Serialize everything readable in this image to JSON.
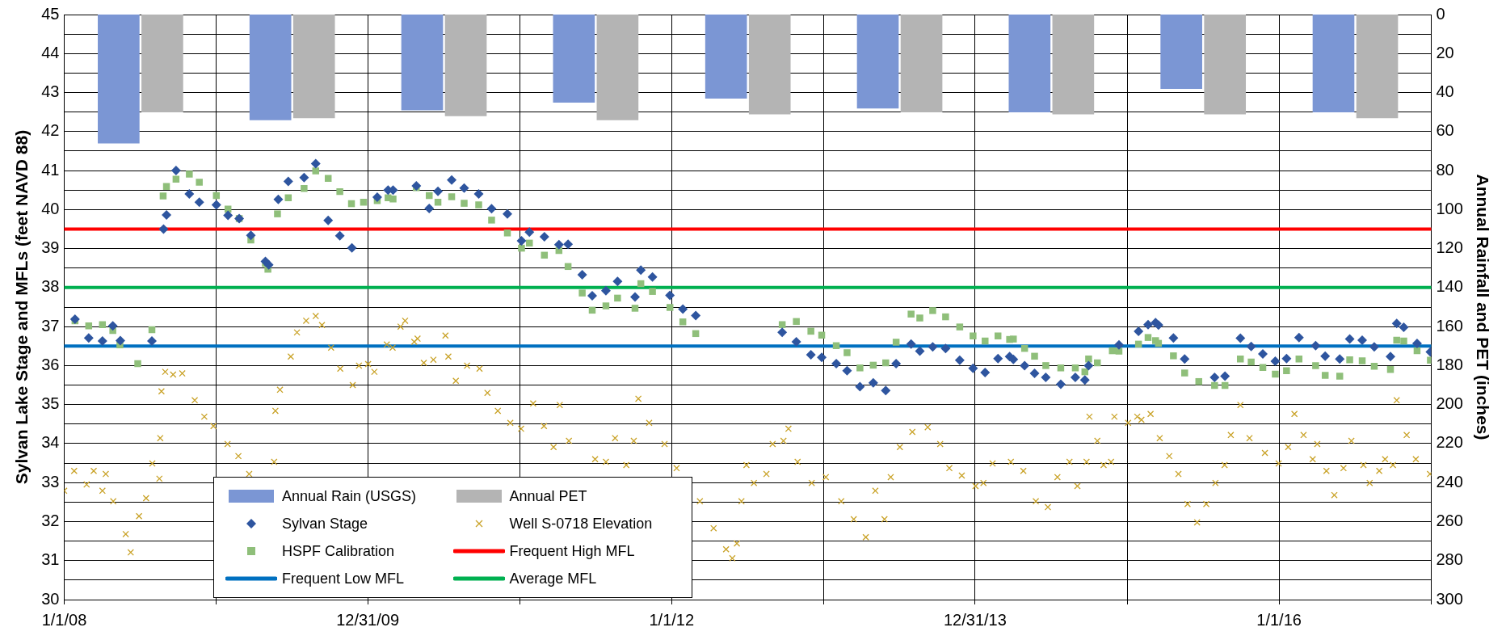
{
  "chart_data": {
    "type": "scatter",
    "ylabel": "Sylvan Lake Stage and MFLs (feet NAVD 88)",
    "y2label": "Annual Rainfall and PET (inches)",
    "xlim": [
      "2008-01-01",
      "2017-01-01"
    ],
    "xticks": [
      {
        "value": "2008-01-01",
        "label": "1/1/08"
      },
      {
        "value": "2009-01-01",
        "label": null
      },
      {
        "value": "2009-12-31",
        "label": "12/31/09"
      },
      {
        "value": "2011-01-01",
        "label": null
      },
      {
        "value": "2012-01-01",
        "label": "1/1/12"
      },
      {
        "value": "2013-01-01",
        "label": null
      },
      {
        "value": "2013-12-31",
        "label": "12/31/13"
      },
      {
        "value": "2015-01-01",
        "label": null
      },
      {
        "value": "2016-01-01",
        "label": "1/1/16"
      },
      {
        "value": "2017-01-01",
        "label": null
      }
    ],
    "ylim": [
      30,
      45
    ],
    "yticks": [
      30,
      {
        "value": 30.5,
        "label": null
      },
      31,
      {
        "value": 31.5,
        "label": null
      },
      32,
      {
        "value": 32.5,
        "label": null
      },
      33,
      {
        "value": 33.5,
        "label": null
      },
      34,
      {
        "value": 34.5,
        "label": null
      },
      35,
      {
        "value": 35.5,
        "label": null
      },
      36,
      {
        "value": 36.5,
        "label": null
      },
      37,
      {
        "value": 37.5,
        "label": null
      },
      38,
      {
        "value": 38.5,
        "label": null
      },
      39,
      {
        "value": 39.5,
        "label": null
      },
      40,
      {
        "value": 40.5,
        "label": null
      },
      41,
      {
        "value": 41.5,
        "label": null
      },
      42,
      {
        "value": 42.5,
        "label": null
      },
      43,
      {
        "value": 43.5,
        "label": null
      },
      44,
      {
        "value": 44.5,
        "label": null
      },
      45
    ],
    "y2lim": [
      300,
      0
    ],
    "y2ticks": [
      0,
      20,
      40,
      60,
      80,
      100,
      120,
      140,
      160,
      180,
      200,
      220,
      240,
      260,
      280,
      300
    ],
    "grid": true,
    "legend": "bottom",
    "series": [
      {
        "name": "Annual Rain (USGS)",
        "type": "bar",
        "axis": "y2",
        "color": "#7b96d4",
        "x": [
          "2008-05-11",
          "2009-05-11",
          "2010-05-11",
          "2011-05-11",
          "2012-05-11",
          "2013-05-11",
          "2014-05-11",
          "2015-05-11",
          "2016-05-11"
        ],
        "values": [
          66,
          54,
          49,
          45,
          43,
          48,
          50,
          38,
          50
        ]
      },
      {
        "name": "Annual PET",
        "type": "bar",
        "axis": "y2",
        "color": "#b4b4b4",
        "x": [
          "2008-08-24",
          "2009-08-24",
          "2010-08-24",
          "2011-08-24",
          "2012-08-24",
          "2013-08-24",
          "2014-08-24",
          "2015-08-24",
          "2016-08-24"
        ],
        "values": [
          50,
          53,
          52,
          54,
          51,
          50,
          51,
          51,
          53
        ]
      },
      {
        "name": "Sylvan Stage",
        "marker": "diamond",
        "color": "#2e559f",
        "x": [
          "2008-01-27",
          "2008-02-29",
          "2008-04-02",
          "2008-04-27",
          "2008-05-15",
          "2008-07-30",
          "2008-08-27",
          "2008-09-03",
          "2008-09-26",
          "2008-10-28",
          "2008-11-21",
          "2009-01-01",
          "2009-01-29",
          "2009-02-25",
          "2009-03-25",
          "2009-04-29",
          "2009-05-07",
          "2009-05-30",
          "2009-06-23",
          "2009-07-31",
          "2009-08-28",
          "2009-09-27",
          "2009-10-25",
          "2009-11-23",
          "2010-01-23",
          "2010-02-18",
          "2010-03-02",
          "2010-04-27",
          "2010-05-28",
          "2010-06-18",
          "2010-07-21",
          "2010-08-20",
          "2010-09-24",
          "2010-10-25",
          "2010-12-02",
          "2011-01-05",
          "2011-01-24",
          "2011-03-01",
          "2011-04-05",
          "2011-04-27",
          "2011-05-31",
          "2011-06-24",
          "2011-07-27",
          "2011-08-24",
          "2011-10-05",
          "2011-10-19",
          "2011-11-16",
          "2011-12-28",
          "2012-01-28",
          "2012-02-28",
          "2012-09-23",
          "2012-10-27",
          "2012-12-01",
          "2012-12-27",
          "2013-01-31",
          "2013-02-26",
          "2013-03-29",
          "2013-04-30",
          "2013-05-30",
          "2013-06-24",
          "2013-07-30",
          "2013-08-20",
          "2013-09-20",
          "2013-10-21",
          "2013-11-24",
          "2013-12-26",
          "2014-01-24",
          "2014-02-24",
          "2014-03-24",
          "2014-04-02",
          "2014-04-29",
          "2014-05-23",
          "2014-06-19",
          "2014-07-25",
          "2014-08-29",
          "2014-09-21",
          "2014-09-30",
          "2014-12-12",
          "2015-01-28",
          "2015-02-20",
          "2015-03-10",
          "2015-03-17",
          "2015-04-22",
          "2015-05-19",
          "2015-07-30",
          "2015-08-24",
          "2015-09-30",
          "2015-10-26",
          "2015-11-23",
          "2015-12-23",
          "2016-01-19",
          "2016-02-18",
          "2016-03-29",
          "2016-04-21",
          "2016-05-26",
          "2016-06-19",
          "2016-07-19",
          "2016-08-17",
          "2016-09-25",
          "2016-10-10",
          "2016-10-27",
          "2016-11-28",
          "2016-12-30"
        ],
        "values": [
          37.19,
          36.71,
          36.63,
          37.02,
          36.64,
          36.63,
          39.5,
          39.86,
          41.0,
          40.4,
          40.19,
          40.12,
          39.85,
          39.77,
          39.34,
          38.67,
          38.58,
          40.26,
          40.72,
          40.82,
          41.18,
          39.72,
          39.33,
          39.02,
          40.32,
          40.5,
          40.5,
          40.61,
          40.03,
          40.47,
          40.76,
          40.55,
          40.4,
          40.02,
          39.89,
          39.2,
          39.42,
          39.3,
          39.1,
          39.11,
          38.33,
          37.79,
          37.92,
          38.16,
          37.76,
          38.45,
          38.27,
          37.8,
          37.45,
          37.28,
          36.85,
          36.61,
          36.28,
          36.21,
          36.05,
          35.87,
          35.46,
          35.56,
          35.36,
          36.05,
          36.55,
          36.37,
          36.48,
          36.44,
          36.14,
          35.93,
          35.82,
          36.18,
          36.23,
          36.16,
          36.0,
          35.8,
          35.7,
          35.52,
          35.7,
          35.63,
          36.0,
          36.53,
          36.88,
          37.05,
          37.1,
          37.04,
          36.71,
          36.17,
          35.7,
          35.73,
          36.7,
          36.49,
          36.3,
          36.11,
          36.18,
          36.72,
          36.51,
          36.24,
          36.17,
          36.68,
          36.65,
          36.48,
          36.23,
          37.08,
          36.98,
          36.57,
          36.35
        ]
      },
      {
        "name": "Well S-0718 Elevation",
        "marker": "cross",
        "color": "#c9a227",
        "x": [
          "2008-01-01",
          "2008-01-25",
          "2008-02-24",
          "2008-03-12",
          "2008-04-02",
          "2008-04-10",
          "2008-04-28",
          "2008-05-28",
          "2008-06-09",
          "2008-06-29",
          "2008-07-16",
          "2008-07-31",
          "2008-08-17",
          "2008-08-19",
          "2008-08-22",
          "2008-08-31",
          "2008-09-19",
          "2008-10-11",
          "2008-11-10",
          "2008-12-03",
          "2008-12-25",
          "2009-01-28",
          "2009-02-23",
          "2009-03-21",
          "2009-05-20",
          "2009-05-23",
          "2009-06-03",
          "2009-06-29",
          "2009-07-14",
          "2009-08-05",
          "2009-08-28",
          "2009-09-12",
          "2009-10-04",
          "2009-10-26",
          "2009-11-25",
          "2009-12-10",
          "2010-01-01",
          "2010-01-16",
          "2010-02-15",
          "2010-03-01",
          "2010-03-20",
          "2010-03-31",
          "2010-04-22",
          "2010-04-30",
          "2010-05-15",
          "2010-06-07",
          "2010-07-06",
          "2010-07-13",
          "2010-07-31",
          "2010-08-27",
          "2010-09-26",
          "2010-10-15",
          "2010-11-09",
          "2010-12-09",
          "2011-01-04",
          "2011-02-02",
          "2011-02-28",
          "2011-03-23",
          "2011-04-07",
          "2011-04-29",
          "2011-07-01",
          "2011-07-27",
          "2011-08-18",
          "2011-09-14",
          "2011-10-02",
          "2011-10-13",
          "2011-11-08",
          "2011-12-15",
          "2012-01-13",
          "2012-03-09",
          "2012-04-11",
          "2012-05-11",
          "2012-05-26",
          "2012-06-06",
          "2012-06-17",
          "2012-06-29",
          "2012-07-17",
          "2012-08-16",
          "2012-08-31",
          "2012-09-26",
          "2012-10-08",
          "2012-10-30",
          "2012-12-03",
          "2013-01-06",
          "2013-02-12",
          "2013-03-14",
          "2013-04-12",
          "2013-05-05",
          "2013-05-27",
          "2013-06-11",
          "2013-07-03",
          "2013-08-02",
          "2013-09-08",
          "2013-10-08",
          "2013-10-30",
          "2013-11-29",
          "2014-01-01",
          "2014-01-20",
          "2014-02-11",
          "2014-03-27",
          "2014-04-26",
          "2014-05-26",
          "2014-06-24",
          "2014-07-17",
          "2014-08-15",
          "2014-09-03",
          "2014-09-25",
          "2014-10-02",
          "2014-10-21",
          "2014-11-05",
          "2014-11-23",
          "2014-12-01",
          "2015-01-03",
          "2015-01-25",
          "2015-02-04",
          "2015-02-26",
          "2015-03-20",
          "2015-04-12",
          "2015-05-04",
          "2015-05-26",
          "2015-06-18",
          "2015-07-10",
          "2015-08-01",
          "2015-08-23",
          "2015-09-07",
          "2015-09-30",
          "2015-10-22",
          "2015-11-28",
          "2015-12-31",
          "2016-01-23",
          "2016-02-07",
          "2016-02-29",
          "2016-03-22",
          "2016-04-02",
          "2016-04-24",
          "2016-05-13",
          "2016-06-04",
          "2016-06-23",
          "2016-07-22",
          "2016-08-06",
          "2016-08-29",
          "2016-09-12",
          "2016-10-01",
          "2016-10-10",
          "2016-11-03",
          "2016-11-25",
          "2016-12-29"
        ],
        "values": [
          32.79,
          33.3,
          32.95,
          33.3,
          32.79,
          33.22,
          32.52,
          31.68,
          31.21,
          32.14,
          32.6,
          33.49,
          33.1,
          34.14,
          35.34,
          35.84,
          35.77,
          35.8,
          35.11,
          34.69,
          34.45,
          33.99,
          33.68,
          33.22,
          33.53,
          34.84,
          35.38,
          36.23,
          36.85,
          37.15,
          37.27,
          37.04,
          36.46,
          35.92,
          35.5,
          36.0,
          36.04,
          35.84,
          36.54,
          36.46,
          37.0,
          37.15,
          36.61,
          36.69,
          36.07,
          36.15,
          36.77,
          36.23,
          35.61,
          36.0,
          35.92,
          35.3,
          34.84,
          34.53,
          34.38,
          35.03,
          34.45,
          33.91,
          34.99,
          34.07,
          33.6,
          33.53,
          34.14,
          33.45,
          34.07,
          35.15,
          34.53,
          33.99,
          33.37,
          32.52,
          31.83,
          31.29,
          31.06,
          31.44,
          32.52,
          33.45,
          32.99,
          33.22,
          33.99,
          34.07,
          34.38,
          33.53,
          32.99,
          33.14,
          32.52,
          32.06,
          31.6,
          32.79,
          32.06,
          33.14,
          33.91,
          34.3,
          34.42,
          33.99,
          33.37,
          33.18,
          32.91,
          32.99,
          33.49,
          33.53,
          33.3,
          32.52,
          32.37,
          33.14,
          33.53,
          32.91,
          33.53,
          34.69,
          34.07,
          33.45,
          33.53,
          34.69,
          34.53,
          34.69,
          34.61,
          34.76,
          34.14,
          33.68,
          33.22,
          32.45,
          31.98,
          32.45,
          32.99,
          33.45,
          34.22,
          34.99,
          34.14,
          33.76,
          33.49,
          33.91,
          34.76,
          34.22,
          33.6,
          33.99,
          33.3,
          32.68,
          33.37,
          34.07,
          33.45,
          32.99,
          33.3,
          33.6,
          33.45,
          35.11,
          34.22,
          33.6,
          33.22
        ]
      },
      {
        "name": "HSPF Calibration",
        "marker": "square",
        "color": "#8fbf7a",
        "x": [
          "2008-01-27",
          "2008-02-29",
          "2008-04-02",
          "2008-04-27",
          "2008-05-14",
          "2008-06-26",
          "2008-07-30",
          "2008-08-26",
          "2008-09-03",
          "2008-09-26",
          "2008-10-28",
          "2008-11-21",
          "2009-01-01",
          "2009-01-29",
          "2009-02-25",
          "2009-03-25",
          "2009-04-29",
          "2009-05-05",
          "2009-05-28",
          "2009-06-23",
          "2009-07-31",
          "2009-08-28",
          "2009-09-27",
          "2009-10-25",
          "2009-11-22",
          "2009-12-21",
          "2010-01-23",
          "2010-02-18",
          "2010-03-02",
          "2010-04-27",
          "2010-05-28",
          "2010-06-18",
          "2010-07-21",
          "2010-08-20",
          "2010-09-24",
          "2010-10-25",
          "2010-12-02",
          "2011-01-05",
          "2011-01-24",
          "2011-03-01",
          "2011-04-05",
          "2011-04-27",
          "2011-05-31",
          "2011-06-24",
          "2011-07-27",
          "2011-08-24",
          "2011-10-05",
          "2011-10-19",
          "2011-11-16",
          "2011-12-28",
          "2012-01-28",
          "2012-02-28",
          "2012-09-23",
          "2012-10-27",
          "2012-12-01",
          "2012-12-27",
          "2013-01-31",
          "2013-02-26",
          "2013-03-29",
          "2013-04-30",
          "2013-05-30",
          "2013-06-24",
          "2013-07-30",
          "2013-08-20",
          "2013-09-20",
          "2013-10-21",
          "2013-11-24",
          "2013-12-26",
          "2014-01-24",
          "2014-02-24",
          "2014-03-24",
          "2014-04-02",
          "2014-04-29",
          "2014-05-23",
          "2014-06-19",
          "2014-07-25",
          "2014-08-29",
          "2014-09-21",
          "2014-09-30",
          "2014-10-21",
          "2014-11-26",
          "2014-12-12",
          "2015-01-28",
          "2015-02-20",
          "2015-03-10",
          "2015-03-17",
          "2015-04-22",
          "2015-05-19",
          "2015-06-22",
          "2015-07-30",
          "2015-08-24",
          "2015-09-30",
          "2015-10-26",
          "2015-11-23",
          "2015-12-23",
          "2016-01-19",
          "2016-02-18",
          "2016-03-29",
          "2016-04-21",
          "2016-05-26",
          "2016-06-19",
          "2016-07-19",
          "2016-08-17",
          "2016-09-25",
          "2016-10-10",
          "2016-10-27",
          "2016-11-28",
          "2016-12-30"
        ],
        "values": [
          37.15,
          37.02,
          37.05,
          36.9,
          36.53,
          36.05,
          36.92,
          40.35,
          40.59,
          40.78,
          40.91,
          40.7,
          40.36,
          40.01,
          39.77,
          39.22,
          38.62,
          38.47,
          39.89,
          40.3,
          40.54,
          40.99,
          40.8,
          40.46,
          40.15,
          40.19,
          40.23,
          40.3,
          40.27,
          40.56,
          40.36,
          40.19,
          40.33,
          40.16,
          40.12,
          39.73,
          39.4,
          39.01,
          39.14,
          38.83,
          38.95,
          38.54,
          37.86,
          37.42,
          37.53,
          37.73,
          37.47,
          38.1,
          37.9,
          37.49,
          37.12,
          36.82,
          37.05,
          37.13,
          36.88,
          36.78,
          36.51,
          36.33,
          35.94,
          36.01,
          36.07,
          36.6,
          37.32,
          37.22,
          37.41,
          37.25,
          36.99,
          36.76,
          36.63,
          36.76,
          36.67,
          36.68,
          36.44,
          36.24,
          36.0,
          35.94,
          35.94,
          35.84,
          36.17,
          36.07,
          36.38,
          36.37,
          36.55,
          36.72,
          36.64,
          36.57,
          36.25,
          35.81,
          35.59,
          35.49,
          35.49,
          36.17,
          36.09,
          35.95,
          35.78,
          35.87,
          36.17,
          36.0,
          35.75,
          35.73,
          36.15,
          36.12,
          35.98,
          35.9,
          36.65,
          36.63,
          36.38,
          36.14
        ]
      }
    ],
    "ref_lines": [
      {
        "axis": "y",
        "value": 39.5,
        "label": "Frequent High MFL",
        "color": "#ff0000"
      },
      {
        "axis": "y",
        "value": 36.5,
        "label": "Frequent Low MFL",
        "color": "#0070c0"
      },
      {
        "axis": "y",
        "value": 38,
        "label": "Average MFL",
        "color": "#00b050"
      }
    ]
  }
}
